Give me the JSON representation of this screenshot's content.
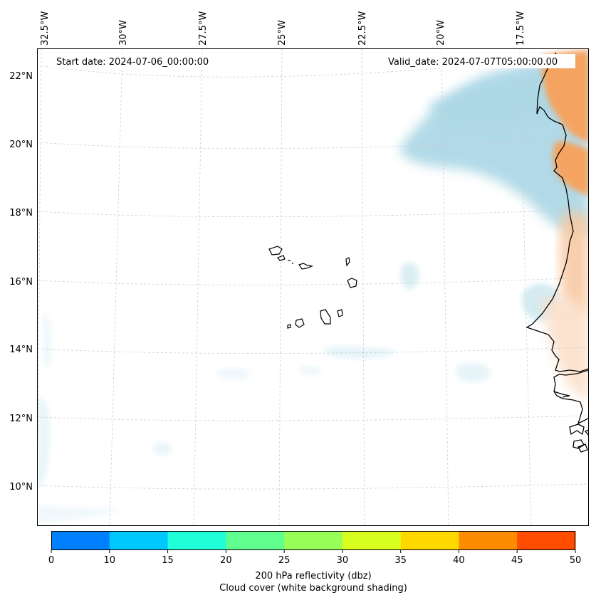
{
  "map": {
    "projection": "lambert-conformal",
    "lon_range": [
      -32.8,
      -15.5
    ],
    "lat_range": [
      9,
      22.5
    ],
    "top_longitude_labels": [
      "32.5°W",
      "30°W",
      "27.5°W",
      "25°W",
      "22.5°W",
      "20°W",
      "17.5°W"
    ],
    "left_latitude_labels": [
      "22°N",
      "20°N",
      "18°N",
      "16°N",
      "14°N",
      "12°N",
      "10°N"
    ],
    "start_date_label": "Start date: 2024-07-06_00:00:00",
    "valid_date_label": "Valid_date: 2024-07-07T05:00:00.00",
    "gridline_style": "dashed light grey",
    "coastline_color": "#000000",
    "cloud_shading_color": "#add8e6",
    "reflectivity_shading_color": "#f4a460",
    "features": [
      "Cape Verde islands",
      "West African coastline (Mauritania, Senegal, Gambia, Guinea-Bissau)"
    ]
  },
  "colorbar": {
    "ticks": [
      "0",
      "10",
      "15",
      "20",
      "25",
      "30",
      "35",
      "40",
      "45",
      "50"
    ],
    "colors": [
      "#0080ff",
      "#00c8ff",
      "#20ffd8",
      "#60ff90",
      "#98ff58",
      "#d8ff20",
      "#ffd800",
      "#ff8c00",
      "#ff4c00"
    ],
    "label_line1": "200 hPa reflectivity (dbz)",
    "label_line2": "Cloud cover (white background shading)"
  }
}
